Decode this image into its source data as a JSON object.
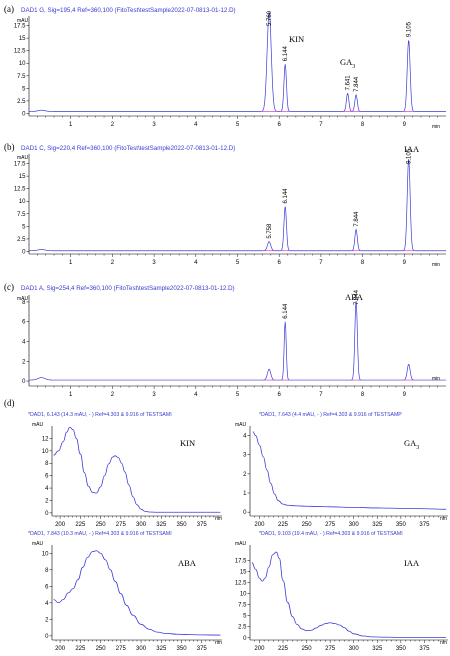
{
  "chromatograms": [
    {
      "panel_label": "(a)",
      "header": "DAD1 G, Sig=195,4 Ref=360,100 (FitoTest\\testSample2022-07-0813-01-12.D)",
      "y_unit": "mAU",
      "x_unit": "min",
      "compound_labels": [
        {
          "base": "KIN",
          "sub": ""
        },
        {
          "base": "GA",
          "sub": "3"
        }
      ],
      "peak_labels": [
        "5.760",
        "6.144",
        "7.641",
        "7.844",
        "9.105"
      ],
      "y_ticks": [
        "17.5",
        "15",
        "12.5",
        "10",
        "7.5",
        "5",
        "2.5",
        "0"
      ],
      "x_ticks": [
        "1",
        "2",
        "3",
        "4",
        "5",
        "6",
        "7",
        "8",
        "9"
      ]
    },
    {
      "panel_label": "(b)",
      "header": "DAD1 C, Sig=220,4 Ref=360,100 (FitoTest\\testSample2022-07-0813-01-12.D)",
      "y_unit": "mAU",
      "x_unit": "min",
      "compound_labels": [
        {
          "base": "IAA",
          "sub": ""
        }
      ],
      "peak_labels": [
        "5.758",
        "6.144",
        "7.844",
        "9.105"
      ],
      "y_ticks": [
        "17.5",
        "15",
        "12.5",
        "10",
        "7.5",
        "5",
        "2.5",
        "0"
      ],
      "x_ticks": [
        "1",
        "2",
        "3",
        "4",
        "5",
        "6",
        "7",
        "8",
        "9"
      ]
    },
    {
      "panel_label": "(c)",
      "header": "DAD1 A, Sig=254,4 Ref=360,100 (FitoTest\\testSample2022-07-0813-01-12.D)",
      "y_unit": "mAU",
      "x_unit": "min",
      "compound_labels": [
        {
          "base": "ABA",
          "sub": ""
        }
      ],
      "peak_labels": [
        "6.144",
        "7.844"
      ],
      "y_ticks": [
        "8",
        "6",
        "4",
        "2",
        "0"
      ],
      "x_ticks": [
        "1",
        "2",
        "3",
        "4",
        "5",
        "6",
        "7",
        "8",
        "9"
      ]
    }
  ],
  "spectra_panel_label": "(d)",
  "spectra": [
    {
      "header": "*DAD1, 6.143 (14.3 mAU, - ) Ref=4.303 & 9.916 of TESTSAMI",
      "compound": {
        "base": "KIN",
        "sub": ""
      },
      "y_unit": "mAU",
      "x_unit": "nm",
      "y_ticks": [
        "12",
        "10",
        "8",
        "6",
        "4",
        "2",
        "0"
      ],
      "x_ticks": [
        "200",
        "225",
        "250",
        "275",
        "300",
        "325",
        "350",
        "375"
      ]
    },
    {
      "header": "*DAD1, 7.643 (4.4 mAU, - ) Ref=4.303 & 9.916 of TESTSAMP",
      "compound": {
        "base": "GA",
        "sub": "3"
      },
      "y_unit": "mAU",
      "x_unit": "nm",
      "y_ticks": [
        "4",
        "3",
        "2",
        "1",
        "0"
      ],
      "x_ticks": [
        "200",
        "225",
        "250",
        "275",
        "300",
        "325",
        "350",
        "375"
      ]
    },
    {
      "header": "*DAD1, 7.843 (10.3 mAU, - ) Ref=4.303 & 9.916 of TESTSAMI",
      "compound": {
        "base": "ABA",
        "sub": ""
      },
      "y_unit": "mAU",
      "x_unit": "nm",
      "y_ticks": [
        "10",
        "8",
        "6",
        "4",
        "2",
        "0"
      ],
      "x_ticks": [
        "200",
        "225",
        "250",
        "275",
        "300",
        "325",
        "350",
        "375"
      ]
    },
    {
      "header": "*DAD1, 9.103 (19.4 mAU, - ) Ref=4.303 & 9.916 of TESTSAMI",
      "compound": {
        "base": "IAA",
        "sub": ""
      },
      "y_unit": "mAU",
      "x_unit": "nm",
      "y_ticks": [
        "17.5",
        "15",
        "12.5",
        "10",
        "7.5",
        "5",
        "2.5",
        "0"
      ],
      "x_ticks": [
        "200",
        "225",
        "250",
        "275",
        "300",
        "325",
        "350",
        "375"
      ]
    }
  ],
  "colors": {
    "trace": "#3b3bd6",
    "baseline": "#d23ad2",
    "axis": "#000000",
    "header_text": "#3a3ad0"
  },
  "chart_data": [
    {
      "type": "line",
      "subtype": "chromatogram",
      "panel": "(a)",
      "title": "DAD1 G, Sig=195,4 Ref=360,100 (FitoTest\\testSample2022-07-0813-01-12.D)",
      "xlabel": "min",
      "ylabel": "mAU",
      "xlim": [
        0,
        10
      ],
      "ylim": [
        -0.5,
        19
      ],
      "baseline": 0.4,
      "peaks": [
        {
          "rt": 5.76,
          "height": 19.8,
          "width": 0.05
        },
        {
          "rt": 6.144,
          "height": 9.4,
          "width": 0.03
        },
        {
          "rt": 7.641,
          "height": 3.6,
          "width": 0.03
        },
        {
          "rt": 7.844,
          "height": 3.3,
          "width": 0.03
        },
        {
          "rt": 9.105,
          "height": 14.2,
          "width": 0.035
        }
      ],
      "compound_labels": [
        {
          "text": "KIN",
          "rt": 6.3
        },
        {
          "text": "GA3",
          "rt": 7.75
        }
      ]
    },
    {
      "type": "line",
      "subtype": "chromatogram",
      "panel": "(b)",
      "title": "DAD1 C, Sig=220,4 Ref=360,100 (FitoTest\\testSample2022-07-0813-01-12.D)",
      "xlabel": "min",
      "ylabel": "mAU",
      "xlim": [
        0,
        10
      ],
      "ylim": [
        -0.5,
        19
      ],
      "baseline": 0.15,
      "peaks": [
        {
          "rt": 5.758,
          "height": 1.8,
          "width": 0.04
        },
        {
          "rt": 6.144,
          "height": 8.8,
          "width": 0.03
        },
        {
          "rt": 7.844,
          "height": 4.2,
          "width": 0.03
        },
        {
          "rt": 9.105,
          "height": 18.3,
          "width": 0.035
        }
      ],
      "compound_labels": [
        {
          "text": "IAA",
          "rt": 9.05
        }
      ]
    },
    {
      "type": "line",
      "subtype": "chromatogram",
      "panel": "(c)",
      "title": "DAD1 A, Sig=254,4 Ref=360,100 (FitoTest\\testSample2022-07-0813-01-12.D)",
      "xlabel": "min",
      "ylabel": "mAU",
      "xlim": [
        0,
        10
      ],
      "ylim": [
        -0.5,
        8.5
      ],
      "baseline": 0.1,
      "peaks": [
        {
          "rt": 5.758,
          "height": 1.1,
          "width": 0.04
        },
        {
          "rt": 6.144,
          "height": 5.9,
          "width": 0.025
        },
        {
          "rt": 7.844,
          "height": 8.0,
          "width": 0.03
        },
        {
          "rt": 9.105,
          "height": 1.6,
          "width": 0.035
        }
      ],
      "compound_labels": [
        {
          "text": "ABA",
          "rt": 7.85
        }
      ]
    },
    {
      "type": "line",
      "subtype": "uv-spectrum",
      "title": "*DAD1, 6.143 (14.3 mAU, - ) Ref=4.303 & 9.916 of TESTSAMI",
      "compound": "KIN",
      "xlabel": "nm",
      "ylabel": "mAU",
      "xlim": [
        190,
        400
      ],
      "ylim": [
        -0.5,
        14
      ],
      "x": [
        192,
        198,
        204,
        208,
        212,
        216,
        220,
        225,
        230,
        235,
        240,
        245,
        250,
        255,
        260,
        265,
        268,
        272,
        276,
        280,
        285,
        290,
        295,
        300,
        305,
        310,
        320,
        330,
        340,
        350,
        360,
        370,
        380,
        390,
        398
      ],
      "y": [
        9.3,
        10.0,
        11.5,
        13.0,
        13.8,
        13.4,
        12.0,
        9.5,
        6.5,
        4.3,
        3.3,
        3.2,
        4.2,
        6.0,
        7.9,
        9.0,
        9.2,
        8.9,
        8.0,
        6.6,
        4.5,
        2.6,
        1.3,
        0.6,
        0.25,
        0.15,
        0.1,
        0.1,
        0.1,
        0.1,
        0.1,
        0.1,
        0.1,
        0.1,
        0.1
      ]
    },
    {
      "type": "line",
      "subtype": "uv-spectrum",
      "title": "*DAD1, 7.643 (4.4 mAU, - ) Ref=4.303 & 9.916 of TESTSAMP",
      "compound": "GA3",
      "xlabel": "nm",
      "ylabel": "mAU",
      "xlim": [
        190,
        400
      ],
      "ylim": [
        -0.2,
        4.5
      ],
      "x": [
        193,
        196,
        200,
        204,
        208,
        212,
        216,
        220,
        225,
        230,
        240,
        250,
        260,
        275,
        300,
        325,
        350,
        375,
        398
      ],
      "y": [
        4.2,
        4.0,
        3.5,
        2.9,
        2.2,
        1.5,
        0.95,
        0.6,
        0.42,
        0.36,
        0.33,
        0.31,
        0.3,
        0.28,
        0.25,
        0.22,
        0.2,
        0.18,
        0.15
      ]
    },
    {
      "type": "line",
      "subtype": "uv-spectrum",
      "title": "*DAD1, 7.843 (10.3 mAU, - ) Ref=4.303 & 9.916 of TESTSAMI",
      "compound": "ABA",
      "xlabel": "nm",
      "ylabel": "mAU",
      "xlim": [
        190,
        400
      ],
      "ylim": [
        -0.5,
        11
      ],
      "x": [
        192,
        198,
        204,
        210,
        216,
        222,
        228,
        234,
        240,
        245,
        250,
        256,
        262,
        268,
        275,
        282,
        290,
        300,
        310,
        320,
        330,
        345,
        360,
        375,
        390,
        398
      ],
      "y": [
        4.4,
        4.0,
        4.4,
        5.2,
        5.7,
        6.8,
        8.3,
        9.5,
        10.2,
        10.3,
        10.0,
        9.2,
        8.0,
        6.6,
        5.1,
        3.7,
        2.5,
        1.4,
        0.8,
        0.45,
        0.3,
        0.2,
        0.15,
        0.12,
        0.1,
        0.1
      ]
    },
    {
      "type": "line",
      "subtype": "uv-spectrum",
      "title": "*DAD1, 9.103 (19.4 mAU, - ) Ref=4.303 & 9.916 of TESTSAMI",
      "compound": "IAA",
      "xlabel": "nm",
      "ylabel": "mAU",
      "xlim": [
        190,
        400
      ],
      "ylim": [
        -0.5,
        21
      ],
      "x": [
        192,
        196,
        200,
        203,
        206,
        210,
        214,
        218,
        221,
        225,
        230,
        235,
        240,
        245,
        250,
        255,
        260,
        265,
        270,
        275,
        280,
        285,
        290,
        295,
        300,
        310,
        320,
        330,
        350,
        370,
        390,
        398
      ],
      "y": [
        17.0,
        15.5,
        13.5,
        12.8,
        13.5,
        16.0,
        18.8,
        19.4,
        18.0,
        13.0,
        8.0,
        4.8,
        3.0,
        2.0,
        1.6,
        1.7,
        2.2,
        2.8,
        3.2,
        3.4,
        3.2,
        2.9,
        2.3,
        1.5,
        0.9,
        0.4,
        0.2,
        0.15,
        0.1,
        0.1,
        0.1,
        0.1
      ]
    }
  ]
}
